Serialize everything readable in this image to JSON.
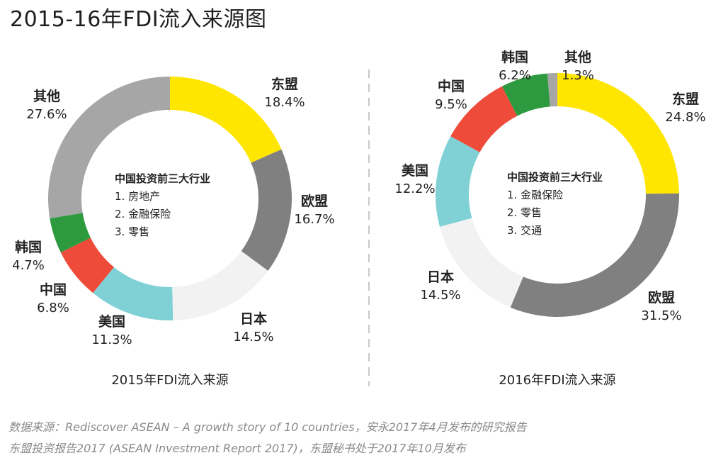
{
  "title": "2015-16年FDI流入来源图",
  "source_lines": [
    "数据来源：Rediscover ASEAN – A growth story of 10 countries，安永2017年4月发布的研究报告",
    "东盟投资报告2017 (ASEAN Investment Report 2017)，东盟秘书处于2017年10月发布"
  ],
  "colors": {
    "东盟": "#FFE600",
    "欧盟": "#808080",
    "日本": "#F2F2F2",
    "美国": "#7FD1D6",
    "中国": "#EE4B3A",
    "韩国": "#2E9A3F",
    "其他": "#A6A6A6"
  },
  "chart_data": [
    {
      "type": "pie",
      "donut": true,
      "caption": "2015年FDI流入来源",
      "center": {
        "title": "中国投资前三大行业",
        "items": [
          "1.  房地产",
          "2.  金融保险",
          "3.  零售"
        ]
      },
      "slices": [
        {
          "label": "东盟",
          "value": 18.4,
          "display": "18.4%"
        },
        {
          "label": "欧盟",
          "value": 16.7,
          "display": "16.7%"
        },
        {
          "label": "日本",
          "value": 14.5,
          "display": "14.5%"
        },
        {
          "label": "美国",
          "value": 11.3,
          "display": "11.3%"
        },
        {
          "label": "中国",
          "value": 6.8,
          "display": "6.8%"
        },
        {
          "label": "韩国",
          "value": 4.7,
          "display": "4.7%"
        },
        {
          "label": "其他",
          "value": 27.6,
          "display": "27.6%"
        }
      ]
    },
    {
      "type": "pie",
      "donut": true,
      "caption": "2016年FDI流入来源",
      "center": {
        "title": "中国投资前三大行业",
        "items": [
          "1.  金融保险",
          "2.  零售",
          "3.  交通"
        ]
      },
      "slices": [
        {
          "label": "东盟",
          "value": 24.8,
          "display": "24.8%"
        },
        {
          "label": "欧盟",
          "value": 31.5,
          "display": "31.5%"
        },
        {
          "label": "日本",
          "value": 14.5,
          "display": "14.5%"
        },
        {
          "label": "美国",
          "value": 12.2,
          "display": "12.2%"
        },
        {
          "label": "中国",
          "value": 9.5,
          "display": "9.5%"
        },
        {
          "label": "韩国",
          "value": 6.2,
          "display": "6.2%"
        },
        {
          "label": "其他",
          "value": 1.3,
          "display": "1.3%"
        }
      ]
    }
  ]
}
